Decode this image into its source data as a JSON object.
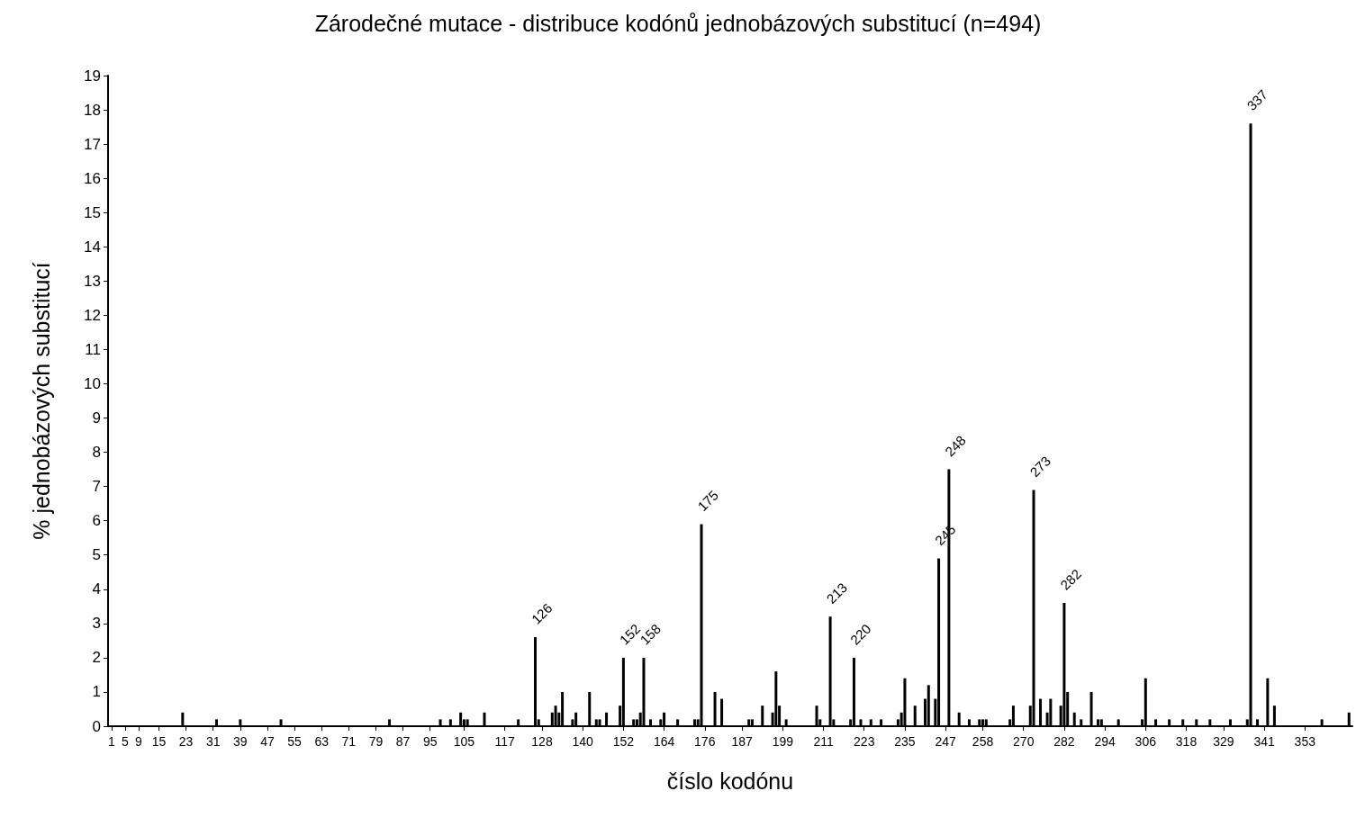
{
  "chart_data": {
    "type": "bar",
    "title": "Zárodečné mutace - distribuce kodónů jednobázových substitucí (n=494)",
    "xlabel": "číslo kodónu",
    "ylabel": "% jednobázových substitucí",
    "x": [
      22,
      32,
      39,
      51,
      83,
      98,
      101,
      104,
      105,
      106,
      111,
      121,
      126,
      127,
      131,
      132,
      133,
      134,
      137,
      138,
      142,
      144,
      145,
      147,
      151,
      152,
      155,
      156,
      157,
      158,
      160,
      163,
      164,
      168,
      173,
      174,
      175,
      179,
      181,
      189,
      190,
      193,
      196,
      197,
      198,
      200,
      209,
      210,
      213,
      214,
      219,
      220,
      222,
      225,
      228,
      233,
      234,
      235,
      238,
      241,
      242,
      244,
      245,
      248,
      251,
      254,
      257,
      258,
      259,
      266,
      267,
      272,
      273,
      275,
      277,
      278,
      281,
      282,
      283,
      285,
      287,
      290,
      292,
      293,
      298,
      305,
      306,
      309,
      313,
      317,
      321,
      325,
      331,
      336,
      337,
      339,
      342,
      344,
      358,
      366
    ],
    "values": [
      0.4,
      0.2,
      0.2,
      0.2,
      0.2,
      0.2,
      0.2,
      0.4,
      0.2,
      0.2,
      0.4,
      0.2,
      2.6,
      0.2,
      0.4,
      0.6,
      0.4,
      1.0,
      0.2,
      0.4,
      1.0,
      0.2,
      0.2,
      0.4,
      0.6,
      2.0,
      0.2,
      0.2,
      0.4,
      2.0,
      0.2,
      0.2,
      0.4,
      0.2,
      0.2,
      0.2,
      5.9,
      1.0,
      0.8,
      0.2,
      0.2,
      0.6,
      0.4,
      1.6,
      0.6,
      0.2,
      0.6,
      0.2,
      3.2,
      0.2,
      0.2,
      2.0,
      0.2,
      0.2,
      0.2,
      0.2,
      0.4,
      1.4,
      0.6,
      0.8,
      1.2,
      0.8,
      4.9,
      7.5,
      0.4,
      0.2,
      0.2,
      0.2,
      0.2,
      0.2,
      0.6,
      0.6,
      6.9,
      0.8,
      0.4,
      0.8,
      0.6,
      3.6,
      1.0,
      0.4,
      0.2,
      1.0,
      0.2,
      0.2,
      0.2,
      0.2,
      1.4,
      0.2,
      0.2,
      0.2,
      0.2,
      0.2,
      0.2,
      0.2,
      17.6,
      0.2,
      1.4,
      0.6,
      0.2,
      0.4
    ],
    "color": "#000000",
    "xlim": [
      0,
      367
    ],
    "xticks": [
      1,
      5,
      9,
      15,
      23,
      31,
      39,
      47,
      55,
      63,
      71,
      79,
      87,
      95,
      105,
      117,
      128,
      140,
      152,
      164,
      176,
      187,
      199,
      211,
      223,
      235,
      247,
      258,
      270,
      282,
      294,
      306,
      318,
      329,
      341,
      353
    ],
    "ylim": [
      0,
      19
    ],
    "yticks": [
      0,
      1,
      2,
      3,
      4,
      5,
      6,
      7,
      8,
      9,
      10,
      11,
      12,
      13,
      14,
      15,
      16,
      17,
      18,
      19
    ],
    "annotations": [
      {
        "text": "126",
        "x": 126,
        "y": 2.6
      },
      {
        "text": "152",
        "x": 152,
        "y": 2.0
      },
      {
        "text": "158",
        "x": 158,
        "y": 2.0
      },
      {
        "text": "175",
        "x": 175,
        "y": 5.9
      },
      {
        "text": "213",
        "x": 213,
        "y": 3.2
      },
      {
        "text": "220",
        "x": 220,
        "y": 2.0
      },
      {
        "text": "245",
        "x": 245,
        "y": 4.9
      },
      {
        "text": "248",
        "x": 248,
        "y": 7.5
      },
      {
        "text": "273",
        "x": 273,
        "y": 6.9
      },
      {
        "text": "282",
        "x": 282,
        "y": 3.6
      },
      {
        "text": "337",
        "x": 337,
        "y": 17.6
      }
    ],
    "grid": false
  }
}
